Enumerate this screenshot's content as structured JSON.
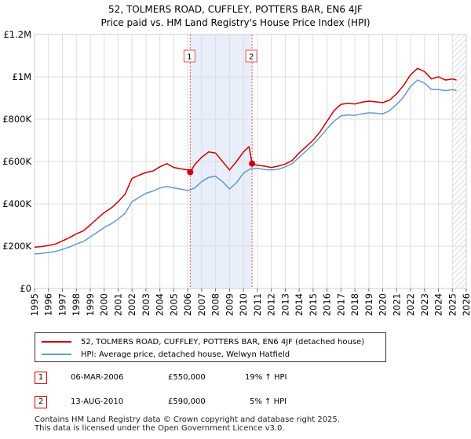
{
  "title_line1": "52, TOLMERS ROAD, CUFFLEY, POTTERS BAR, EN6 4JF",
  "title_line2": "Price paid vs. HM Land Registry's House Price Index (HPI)",
  "colors": {
    "price_line": "#cc0000",
    "hpi_line": "#6699cc",
    "shade": "#e8eefa",
    "grid": "#dddddd",
    "vline": "#dd5555",
    "sale_marker": "#cc0000"
  },
  "chart_data": {
    "type": "line",
    "xlim": [
      1995,
      2026
    ],
    "ylim": [
      0,
      1200000
    ],
    "y_ticks": [
      {
        "value": 0,
        "label": "£0"
      },
      {
        "value": 200000,
        "label": "£200K"
      },
      {
        "value": 400000,
        "label": "£400K"
      },
      {
        "value": 600000,
        "label": "£600K"
      },
      {
        "value": 800000,
        "label": "£800K"
      },
      {
        "value": 1000000,
        "label": "£1M"
      },
      {
        "value": 1200000,
        "label": "£1.2M"
      }
    ],
    "x_ticks": [
      "1995",
      "1996",
      "1997",
      "1998",
      "1999",
      "2000",
      "2001",
      "2002",
      "2003",
      "2004",
      "2005",
      "2006",
      "2007",
      "2008",
      "2009",
      "2010",
      "2011",
      "2012",
      "2013",
      "2014",
      "2015",
      "2016",
      "2017",
      "2018",
      "2019",
      "2020",
      "2021",
      "2022",
      "2023",
      "2024",
      "2025",
      "2026"
    ],
    "shaded_region": [
      2006.18,
      2010.62
    ],
    "projection_start": 2025.0,
    "series": [
      {
        "name": "52, TOLMERS ROAD, CUFFLEY, POTTERS BAR, EN6 4JF (detached house)",
        "color": "#cc0000",
        "x": [
          1995,
          1995.5,
          1996,
          1996.5,
          1997,
          1997.5,
          1998,
          1998.5,
          1999,
          1999.5,
          2000,
          2000.5,
          2001,
          2001.5,
          2002,
          2002.5,
          2003,
          2003.5,
          2004,
          2004.5,
          2005,
          2005.5,
          2006,
          2006.18,
          2006.5,
          2007,
          2007.5,
          2008,
          2008.5,
          2009,
          2009.5,
          2010,
          2010.4,
          2010.62,
          2011,
          2011.5,
          2012,
          2012.5,
          2013,
          2013.5,
          2014,
          2014.5,
          2015,
          2015.5,
          2016,
          2016.5,
          2017,
          2017.5,
          2018,
          2018.5,
          2019,
          2019.5,
          2020,
          2020.5,
          2021,
          2021.5,
          2022,
          2022.5,
          2023,
          2023.5,
          2024,
          2024.5,
          2025,
          2025.3
        ],
        "y": [
          195000,
          198000,
          203000,
          210000,
          225000,
          240000,
          258000,
          272000,
          300000,
          330000,
          358000,
          380000,
          410000,
          445000,
          520000,
          535000,
          548000,
          555000,
          575000,
          590000,
          572000,
          565000,
          560000,
          550000,
          585000,
          620000,
          645000,
          640000,
          600000,
          560000,
          600000,
          645000,
          670000,
          590000,
          582000,
          578000,
          572000,
          578000,
          588000,
          605000,
          640000,
          670000,
          700000,
          740000,
          790000,
          840000,
          870000,
          875000,
          872000,
          880000,
          885000,
          882000,
          878000,
          890000,
          920000,
          960000,
          1010000,
          1040000,
          1025000,
          990000,
          1000000,
          985000,
          990000,
          985000
        ]
      },
      {
        "name": "HPI: Average price, detached house, Welwyn Hatfield",
        "color": "#6699cc",
        "x": [
          1995,
          1995.5,
          1996,
          1996.5,
          1997,
          1997.5,
          1998,
          1998.5,
          1999,
          1999.5,
          2000,
          2000.5,
          2001,
          2001.5,
          2002,
          2002.5,
          2003,
          2003.5,
          2004,
          2004.5,
          2005,
          2005.5,
          2006,
          2006.5,
          2007,
          2007.5,
          2008,
          2008.5,
          2009,
          2009.5,
          2010,
          2010.5,
          2011,
          2011.5,
          2012,
          2012.5,
          2013,
          2013.5,
          2014,
          2014.5,
          2015,
          2015.5,
          2016,
          2016.5,
          2017,
          2017.5,
          2018,
          2018.5,
          2019,
          2019.5,
          2020,
          2020.5,
          2021,
          2021.5,
          2022,
          2022.5,
          2023,
          2023.5,
          2024,
          2024.5,
          2025,
          2025.3
        ],
        "y": [
          163000,
          166000,
          170000,
          175000,
          185000,
          196000,
          210000,
          222000,
          244000,
          265000,
          288000,
          305000,
          328000,
          355000,
          410000,
          430000,
          450000,
          460000,
          475000,
          482000,
          475000,
          470000,
          462000,
          475000,
          505000,
          525000,
          530000,
          505000,
          470000,
          500000,
          545000,
          565000,
          568000,
          562000,
          560000,
          563000,
          575000,
          590000,
          620000,
          650000,
          680000,
          715000,
          755000,
          790000,
          815000,
          820000,
          818000,
          825000,
          830000,
          828000,
          825000,
          840000,
          870000,
          905000,
          955000,
          985000,
          970000,
          940000,
          940000,
          935000,
          940000,
          935000
        ]
      }
    ],
    "sales": [
      {
        "num": "1",
        "x": 2006.18,
        "value": 550000
      },
      {
        "num": "2",
        "x": 2010.62,
        "value": 590000
      }
    ]
  },
  "legend": {
    "price_label": "52, TOLMERS ROAD, CUFFLEY, POTTERS BAR, EN6 4JF (detached house)",
    "hpi_label": "HPI: Average price, detached house, Welwyn Hatfield"
  },
  "transactions": [
    {
      "num": "1",
      "date": "06-MAR-2006",
      "price": "£550,000",
      "hpi": "19% ↑ HPI"
    },
    {
      "num": "2",
      "date": "13-AUG-2010",
      "price": "£590,000",
      "hpi": "5% ↑ HPI"
    }
  ],
  "footer": {
    "line1": "Contains HM Land Registry data © Crown copyright and database right 2025.",
    "line2": "This data is licensed under the Open Government Licence v3.0."
  }
}
